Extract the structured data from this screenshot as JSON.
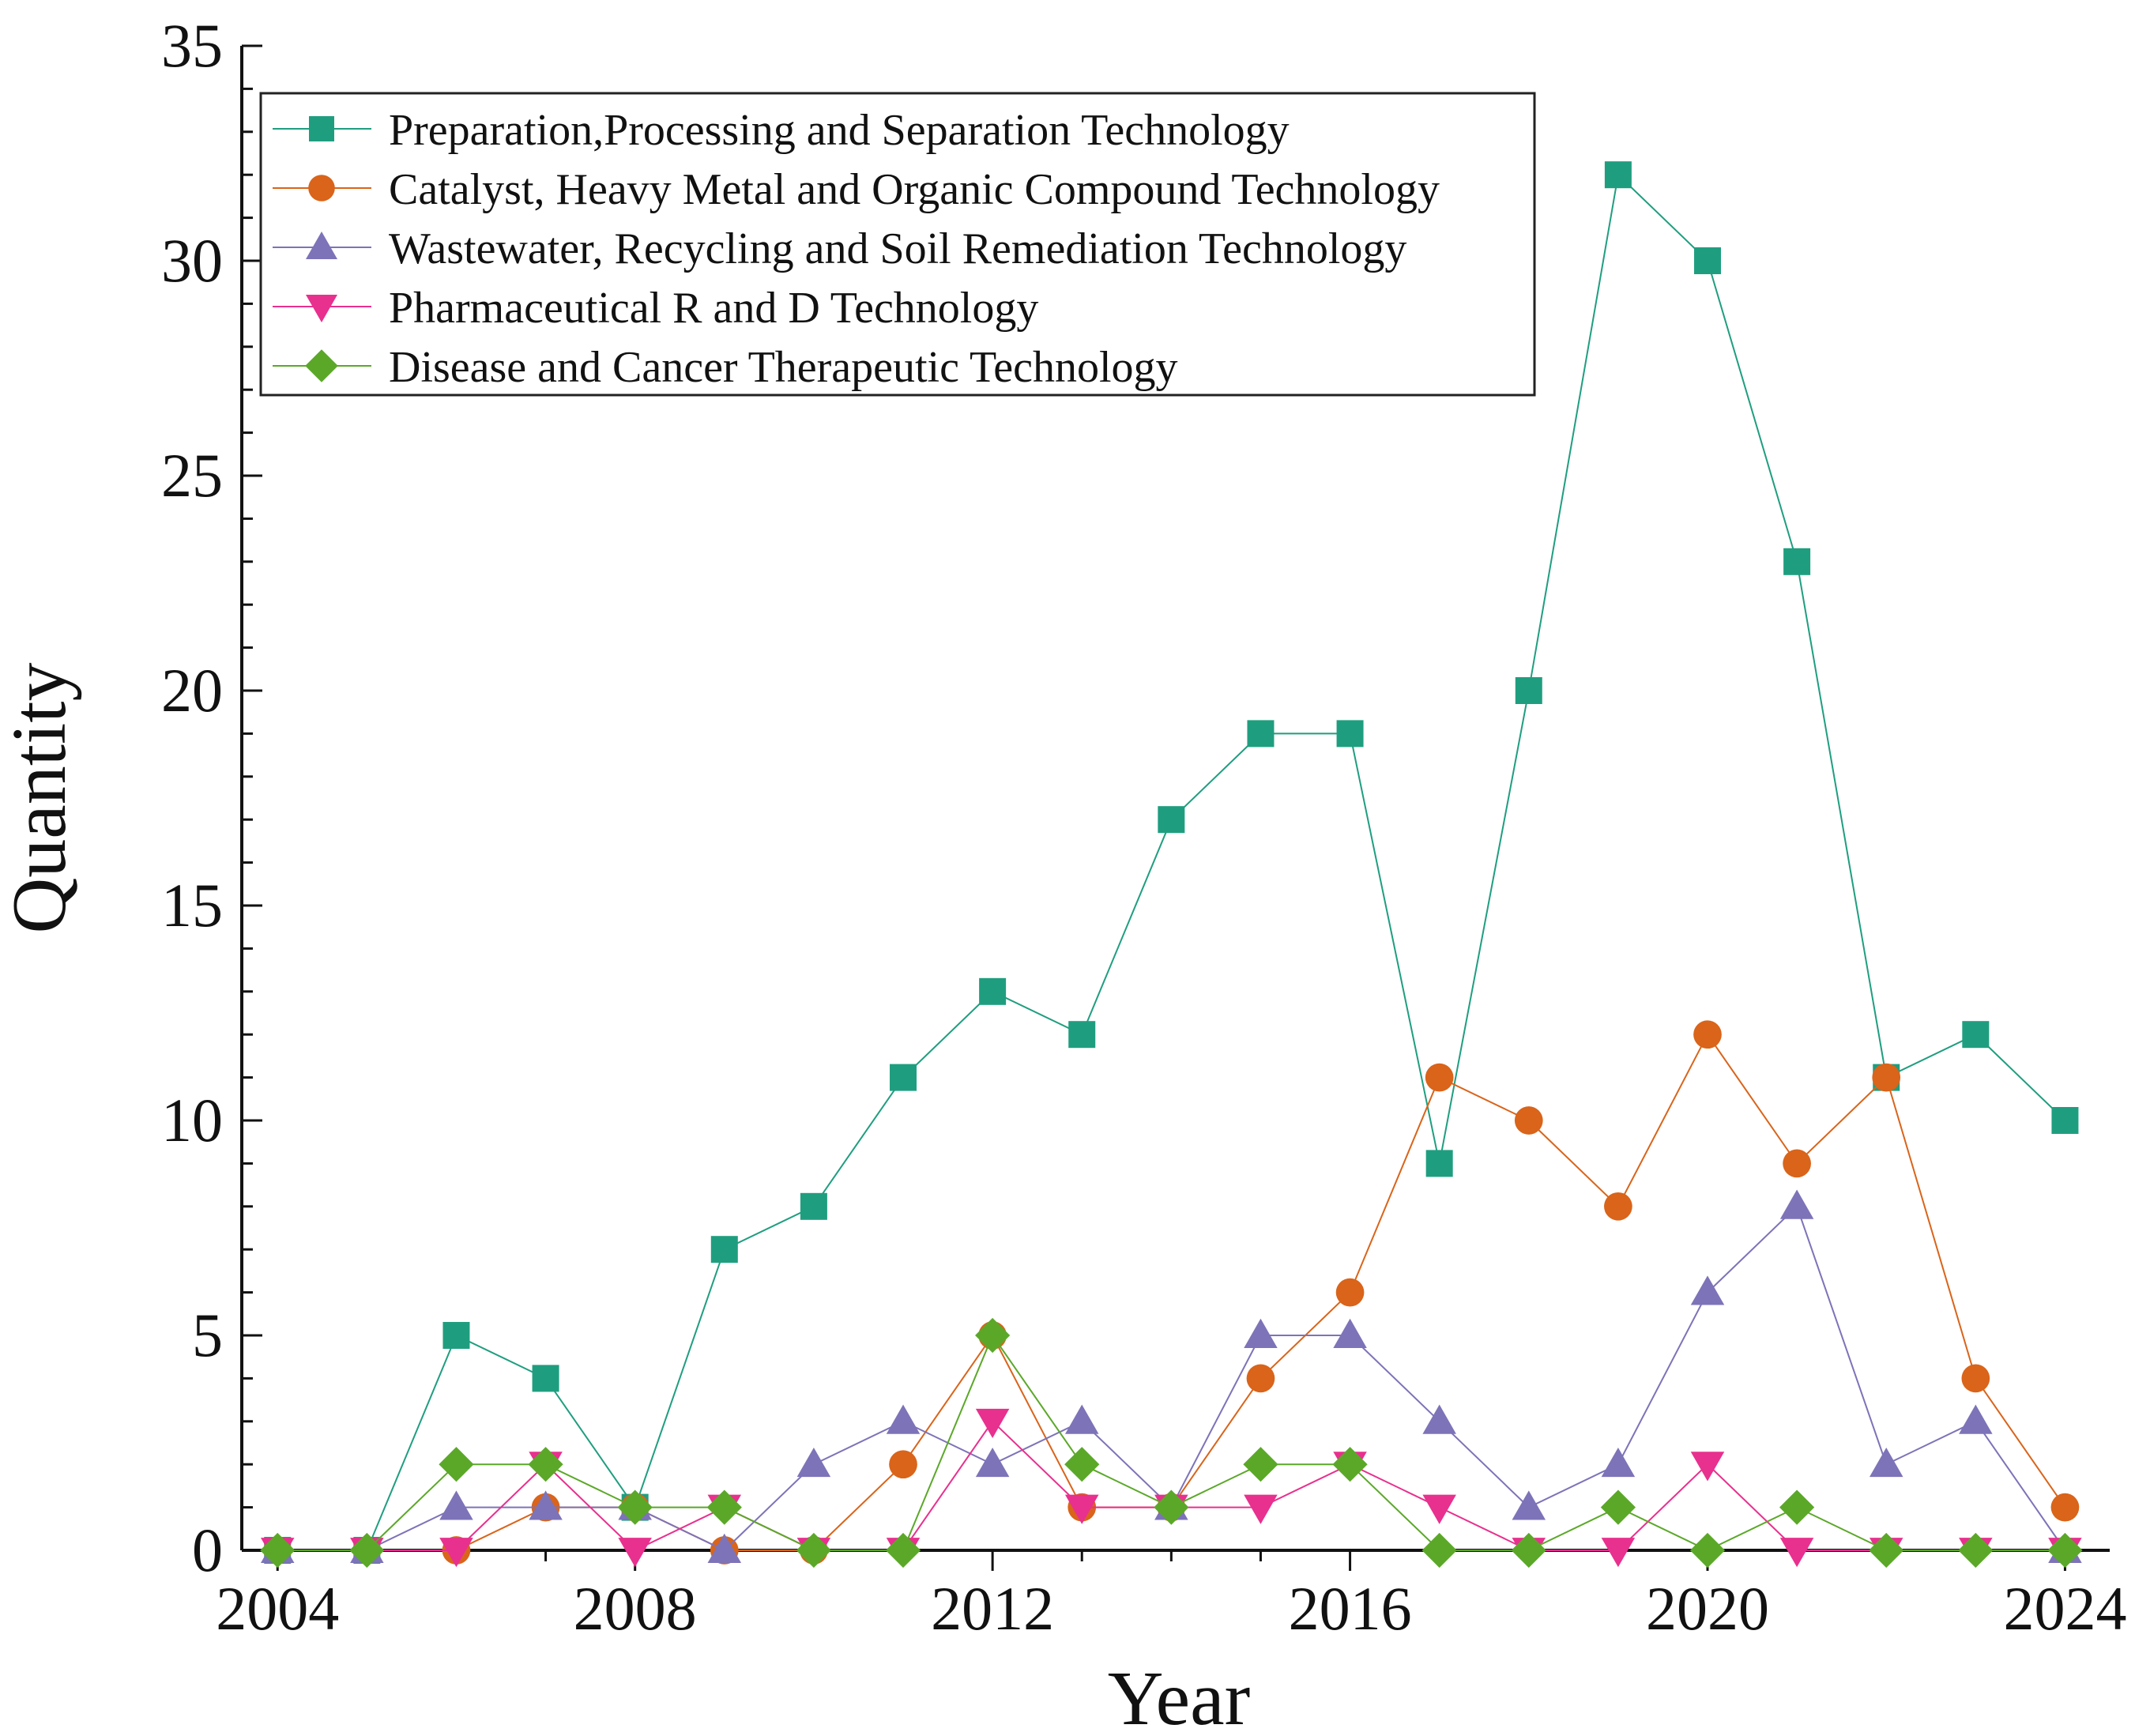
{
  "chart_data": {
    "type": "line",
    "xlabel": "Year",
    "ylabel": "Quantity",
    "xlim": [
      2003.6,
      2024.5
    ],
    "ylim": [
      0,
      35
    ],
    "x_ticks": [
      "2004",
      "2008",
      "2012",
      "2016",
      "2020",
      "2024"
    ],
    "y_ticks": [
      "0",
      "5",
      "10",
      "15",
      "20",
      "25",
      "30",
      "35"
    ],
    "legend_position": "top-left",
    "grid": false,
    "x": [
      2004,
      2005,
      2006,
      2007,
      2008,
      2009,
      2010,
      2011,
      2012,
      2013,
      2014,
      2015,
      2016,
      2017,
      2018,
      2019,
      2020,
      2021,
      2022,
      2023,
      2024
    ],
    "series": [
      {
        "name": "Preparation,Processing and Separation Technology",
        "marker": "square",
        "color": "#1f9e7f",
        "values": [
          0,
          0,
          5,
          4,
          1,
          7,
          8,
          11,
          13,
          12,
          17,
          19,
          19,
          9,
          20,
          32,
          30,
          23,
          11,
          12,
          10
        ]
      },
      {
        "name": "Catalyst, Heavy Metal and Organic Compound Technology",
        "marker": "circle",
        "color": "#d9641a",
        "values": [
          0,
          0,
          0,
          1,
          1,
          0,
          0,
          2,
          5,
          1,
          1,
          4,
          6,
          11,
          10,
          8,
          12,
          9,
          11,
          4,
          1
        ]
      },
      {
        "name": "Wastewater, Recycling and Soil Remediation Technology",
        "marker": "triangle-up",
        "color": "#7d73b8",
        "values": [
          0,
          0,
          1,
          1,
          1,
          0,
          2,
          3,
          2,
          3,
          1,
          5,
          5,
          3,
          1,
          2,
          6,
          8,
          2,
          3,
          0
        ]
      },
      {
        "name": "Pharmaceutical R and D Technology",
        "marker": "triangle-down",
        "color": "#e8308e",
        "values": [
          0,
          0,
          0,
          2,
          0,
          1,
          0,
          0,
          3,
          1,
          1,
          1,
          2,
          1,
          0,
          0,
          2,
          0,
          0,
          0,
          0
        ]
      },
      {
        "name": "Disease and Cancer Therapeutic Technology",
        "marker": "diamond",
        "color": "#5ba829",
        "values": [
          0,
          0,
          2,
          2,
          1,
          1,
          0,
          0,
          5,
          2,
          1,
          2,
          2,
          0,
          0,
          1,
          0,
          1,
          0,
          0,
          0
        ]
      }
    ]
  }
}
